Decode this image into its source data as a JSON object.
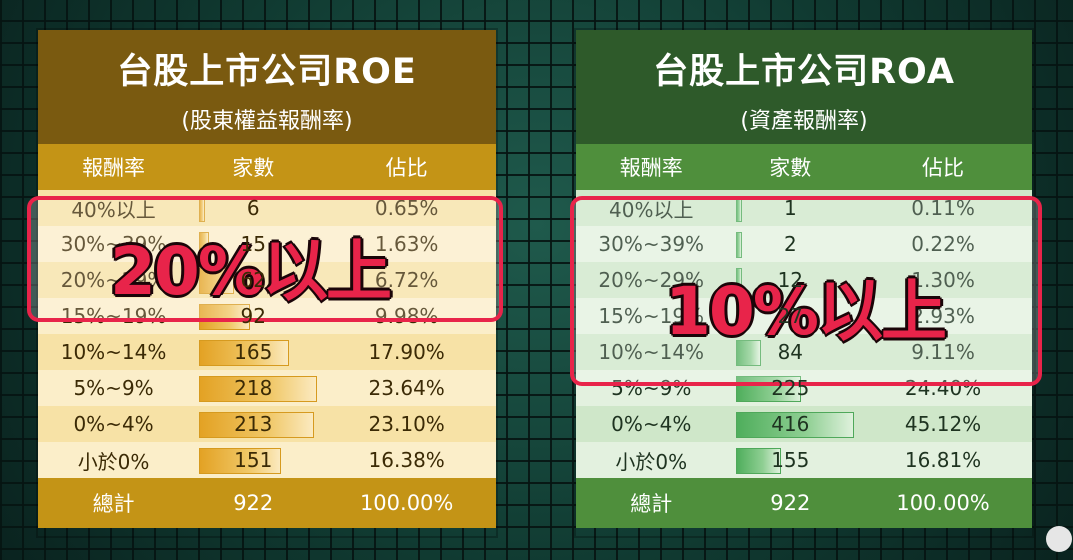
{
  "roe": {
    "title": "台股上市公司ROE",
    "subtitle": "(股東權益報酬率)",
    "headers": [
      "報酬率",
      "家數",
      "佔比"
    ],
    "rows": [
      {
        "range": "40%以上",
        "count": "6",
        "share": "0.65%",
        "fraction": 0.028
      },
      {
        "range": "30%~39%",
        "count": "15",
        "share": "1.63%",
        "fraction": 0.069
      },
      {
        "range": "20%~29%",
        "count": "62",
        "share": "6.72%",
        "fraction": 0.284
      },
      {
        "range": "15%~19%",
        "count": "92",
        "share": "9.98%",
        "fraction": 0.422
      },
      {
        "range": "10%~14%",
        "count": "165",
        "share": "17.90%",
        "fraction": 0.757
      },
      {
        "range": "5%~9%",
        "count": "218",
        "share": "23.64%",
        "fraction": 1.0
      },
      {
        "range": "0%~4%",
        "count": "213",
        "share": "23.10%",
        "fraction": 0.977
      },
      {
        "range": "小於0%",
        "count": "151",
        "share": "16.38%",
        "fraction": 0.693
      }
    ],
    "total": {
      "label": "總計",
      "count": "922",
      "share": "100.00%"
    },
    "overlay": "20%以上"
  },
  "roa": {
    "title": "台股上市公司ROA",
    "subtitle": "(資產報酬率)",
    "headers": [
      "報酬率",
      "家數",
      "佔比"
    ],
    "rows": [
      {
        "range": "40%以上",
        "count": "1",
        "share": "0.11%",
        "fraction": 0.002
      },
      {
        "range": "30%~39%",
        "count": "2",
        "share": "0.22%",
        "fraction": 0.005
      },
      {
        "range": "20%~29%",
        "count": "12",
        "share": "1.30%",
        "fraction": 0.029
      },
      {
        "range": "15%~19%",
        "count": "27",
        "share": "2.93%",
        "fraction": 0.065
      },
      {
        "range": "10%~14%",
        "count": "84",
        "share": "9.11%",
        "fraction": 0.202
      },
      {
        "range": "5%~9%",
        "count": "225",
        "share": "24.40%",
        "fraction": 0.541
      },
      {
        "range": "0%~4%",
        "count": "416",
        "share": "45.12%",
        "fraction": 1.0
      },
      {
        "range": "小於0%",
        "count": "155",
        "share": "16.81%",
        "fraction": 0.373
      }
    ],
    "total": {
      "label": "總計",
      "count": "922",
      "share": "100.00%"
    },
    "overlay": "10%以上"
  }
}
